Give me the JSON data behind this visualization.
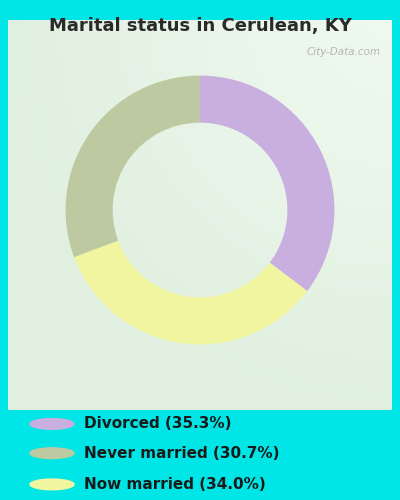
{
  "title": "Marital status in Cerulean, KY",
  "slices": [
    35.3,
    34.0,
    30.7
  ],
  "slice_order": [
    "Divorced",
    "Now married",
    "Never married"
  ],
  "colors": [
    "#c9aee0",
    "#f2f5a0",
    "#bdc9a0"
  ],
  "legend_labels": [
    "Divorced (35.3%)",
    "Never married (30.7%)",
    "Now married (34.0%)"
  ],
  "legend_colors": [
    "#c9aee0",
    "#bdc9a0",
    "#f2f5a0"
  ],
  "background_cyan": "#00e5e5",
  "chart_bg_color": "#e8f5ee",
  "title_color": "#2a2a2a",
  "title_fontsize": 13,
  "legend_fontsize": 11,
  "donut_width": 0.35,
  "start_angle": 90,
  "watermark": "City-Data.com"
}
